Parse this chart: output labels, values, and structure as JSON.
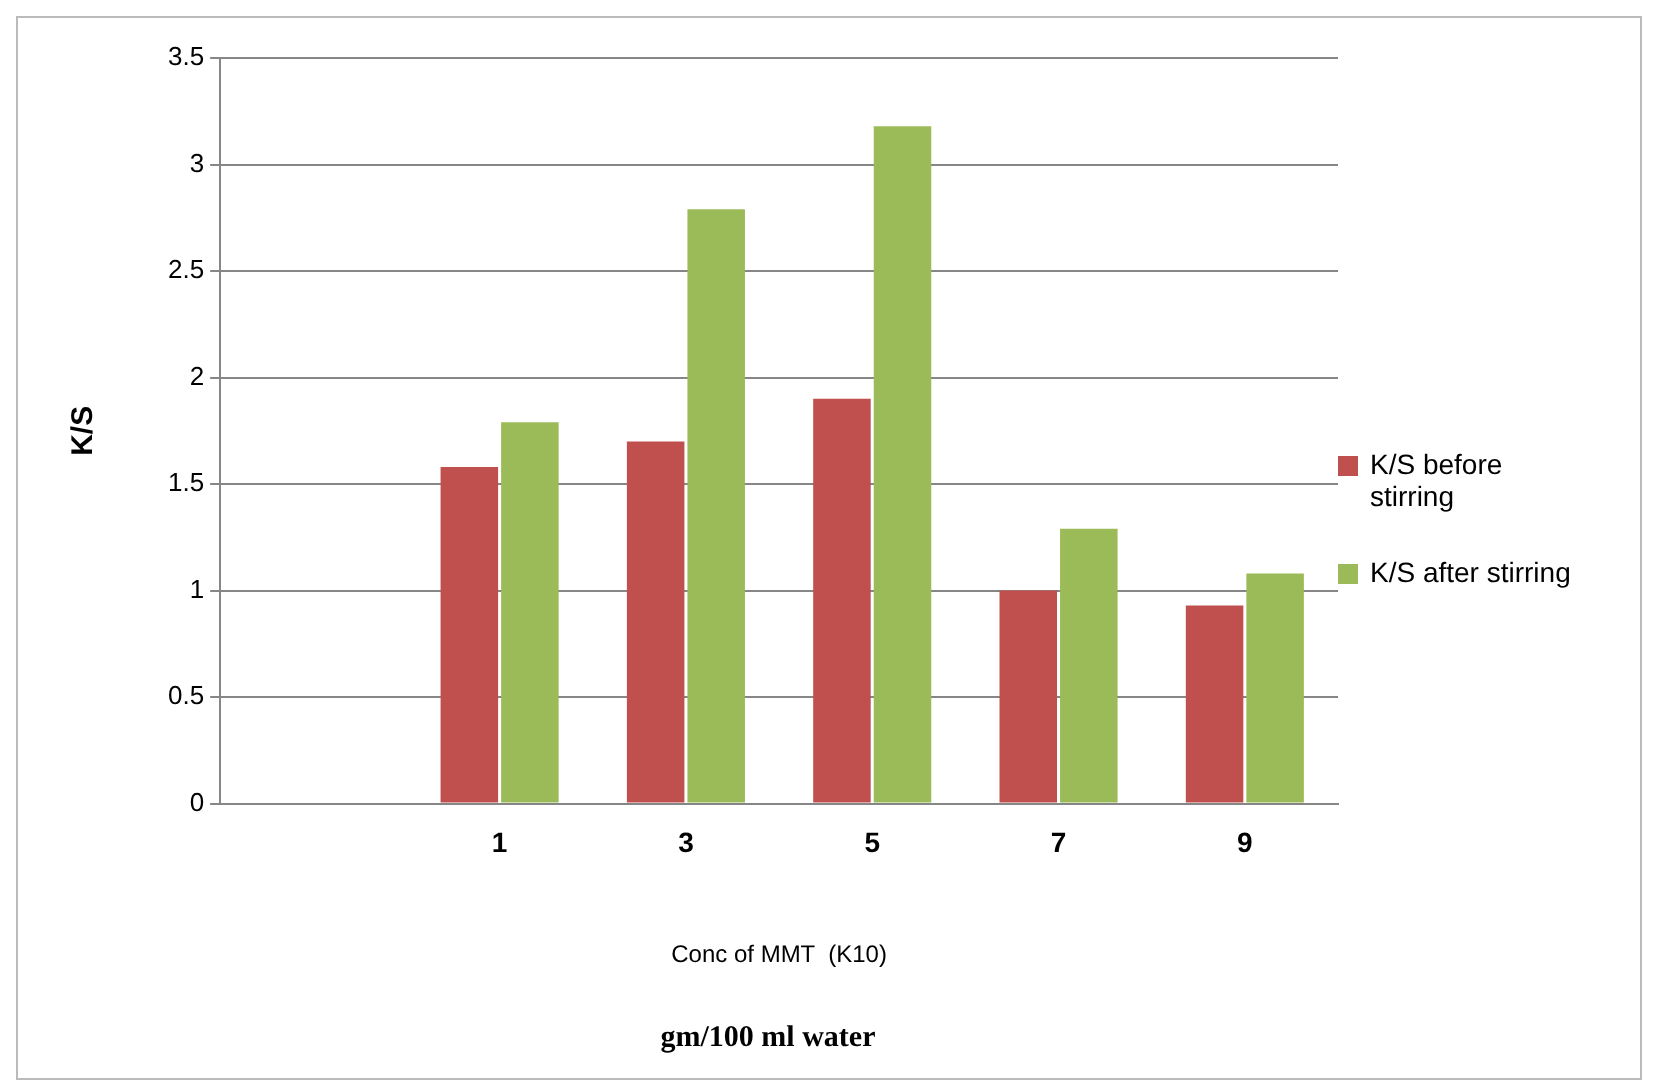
{
  "chart_data": {
    "type": "bar",
    "categories": [
      null,
      "1",
      "3",
      "5",
      "7",
      "9"
    ],
    "series": [
      {
        "name": "K/S before stirring",
        "color": "#c0504d",
        "values": [
          null,
          1.58,
          1.7,
          1.9,
          1.0,
          0.93
        ]
      },
      {
        "name": "K/S after stirring",
        "color": "#9bbb59",
        "values": [
          null,
          1.79,
          2.79,
          3.18,
          1.29,
          1.08
        ]
      }
    ],
    "ylim": [
      0,
      3.5
    ],
    "yticks": [
      0,
      0.5,
      1,
      1.5,
      2,
      2.5,
      3,
      3.5
    ],
    "ylabel": "K/S",
    "xlabel": "Conc of MMT  (K10)",
    "annotations": [
      "gm/100 ml water"
    ],
    "grid": "y",
    "legend": "right"
  }
}
